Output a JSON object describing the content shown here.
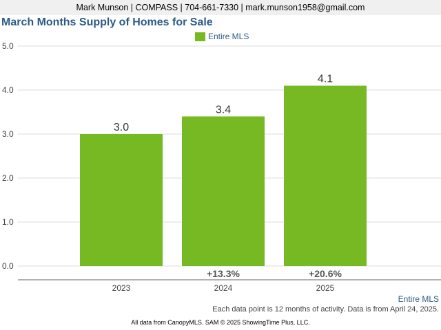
{
  "header": {
    "contact": "Mark Munson | COMPASS | 704-661-7330 | mark.munson1958@gmail.com"
  },
  "colors": {
    "bar": "#77b922",
    "title": "#2d5a88",
    "grid": "#dddddd",
    "axis": "#666666"
  },
  "chart_data": {
    "type": "bar",
    "title": "March Months Supply of Homes for Sale",
    "categories": [
      "2023",
      "2024",
      "2025"
    ],
    "series": [
      {
        "name": "Entire MLS",
        "values": [
          3.0,
          3.4,
          4.1
        ],
        "value_labels": [
          "3.0",
          "3.4",
          "4.1"
        ]
      }
    ],
    "changes": [
      "",
      "+13.3%",
      "+20.6%"
    ],
    "ylim": [
      0,
      5
    ],
    "yticks": [
      0,
      1,
      2,
      3,
      4,
      5
    ],
    "ytick_labels": [
      "0.0",
      "1.0",
      "2.0",
      "3.0",
      "4.0",
      "5.0"
    ],
    "grid": true,
    "legend": "top-center"
  },
  "footer": {
    "series_label": "Entire MLS",
    "note": "Each data point is 12 months of activity. Data is from April 24, 2025.",
    "source": "All data from CanopyMLS. SAM © 2025 ShowingTime Plus, LLC."
  }
}
